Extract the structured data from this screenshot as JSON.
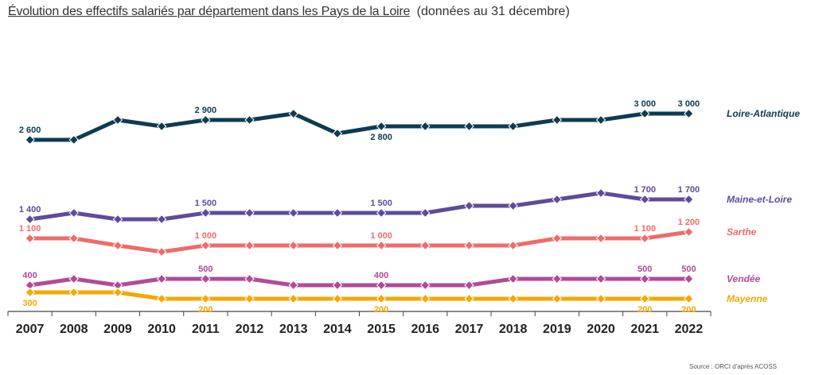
{
  "title": "Évolution des effectifs salariés par département dans les Pays de la Loire",
  "subtitle": "(données au 31 décembre)",
  "source": "Source : ORCI d'après ACOSS",
  "chart_data": {
    "type": "line",
    "categories": [
      "2007",
      "2008",
      "2009",
      "2010",
      "2011",
      "2012",
      "2013",
      "2014",
      "2015",
      "2016",
      "2017",
      "2018",
      "2019",
      "2020",
      "2021",
      "2022"
    ],
    "ylim": [
      0,
      3100
    ],
    "grid": false,
    "legend_placement": "right",
    "series": [
      {
        "name": "Loire-Atlantique",
        "color": "#0d3b53",
        "values": [
          2600,
          2600,
          2900,
          2800,
          2900,
          2900,
          3000,
          2700,
          2800,
          2800,
          2800,
          2800,
          2900,
          2900,
          3000,
          3000
        ],
        "labels": [
          {
            "index": 0,
            "text": "2 600",
            "pos": "above"
          },
          {
            "index": 4,
            "text": "2 900",
            "pos": "above"
          },
          {
            "index": 8,
            "text": "2 800",
            "pos": "below"
          },
          {
            "index": 14,
            "text": "3 000",
            "pos": "above"
          },
          {
            "index": 15,
            "text": "3 000",
            "pos": "above"
          }
        ]
      },
      {
        "name": "Maine-et-Loire",
        "color": "#5e4b9a",
        "values": [
          1400,
          1500,
          1400,
          1400,
          1500,
          1500,
          1500,
          1500,
          1500,
          1500,
          1600,
          1600,
          1700,
          1800,
          1700,
          1700
        ],
        "labels": [
          {
            "index": 0,
            "text": "1 400",
            "pos": "above"
          },
          {
            "index": 4,
            "text": "1 500",
            "pos": "above"
          },
          {
            "index": 8,
            "text": "1 500",
            "pos": "above"
          },
          {
            "index": 14,
            "text": "1 700",
            "pos": "above"
          },
          {
            "index": 15,
            "text": "1 700",
            "pos": "above"
          }
        ]
      },
      {
        "name": "Sarthe",
        "color": "#ef6b6b",
        "values": [
          1100,
          1100,
          1000,
          900,
          1000,
          1000,
          1000,
          1000,
          1000,
          1000,
          1000,
          1000,
          1100,
          1100,
          1100,
          1200
        ],
        "labels": [
          {
            "index": 0,
            "text": "1 100",
            "pos": "above"
          },
          {
            "index": 4,
            "text": "1 000",
            "pos": "above"
          },
          {
            "index": 8,
            "text": "1 000",
            "pos": "above"
          },
          {
            "index": 14,
            "text": "1 100",
            "pos": "above"
          },
          {
            "index": 15,
            "text": "1 200",
            "pos": "above"
          }
        ]
      },
      {
        "name": "Vendée",
        "color": "#b04a9b",
        "values": [
          400,
          500,
          400,
          500,
          500,
          500,
          400,
          400,
          400,
          400,
          400,
          500,
          500,
          500,
          500,
          500
        ],
        "labels": [
          {
            "index": 0,
            "text": "400",
            "pos": "above"
          },
          {
            "index": 4,
            "text": "500",
            "pos": "above"
          },
          {
            "index": 8,
            "text": "400",
            "pos": "above"
          },
          {
            "index": 14,
            "text": "500",
            "pos": "above"
          },
          {
            "index": 15,
            "text": "500",
            "pos": "above"
          }
        ]
      },
      {
        "name": "Mayenne",
        "color": "#f2a900",
        "values": [
          300,
          300,
          300,
          200,
          200,
          200,
          200,
          200,
          200,
          200,
          200,
          200,
          200,
          200,
          200,
          200
        ],
        "labels": [
          {
            "index": 0,
            "text": "300",
            "pos": "below"
          },
          {
            "index": 4,
            "text": "200",
            "pos": "below"
          },
          {
            "index": 8,
            "text": "200",
            "pos": "below"
          },
          {
            "index": 14,
            "text": "200",
            "pos": "below"
          },
          {
            "index": 15,
            "text": "200",
            "pos": "below"
          }
        ]
      }
    ]
  }
}
